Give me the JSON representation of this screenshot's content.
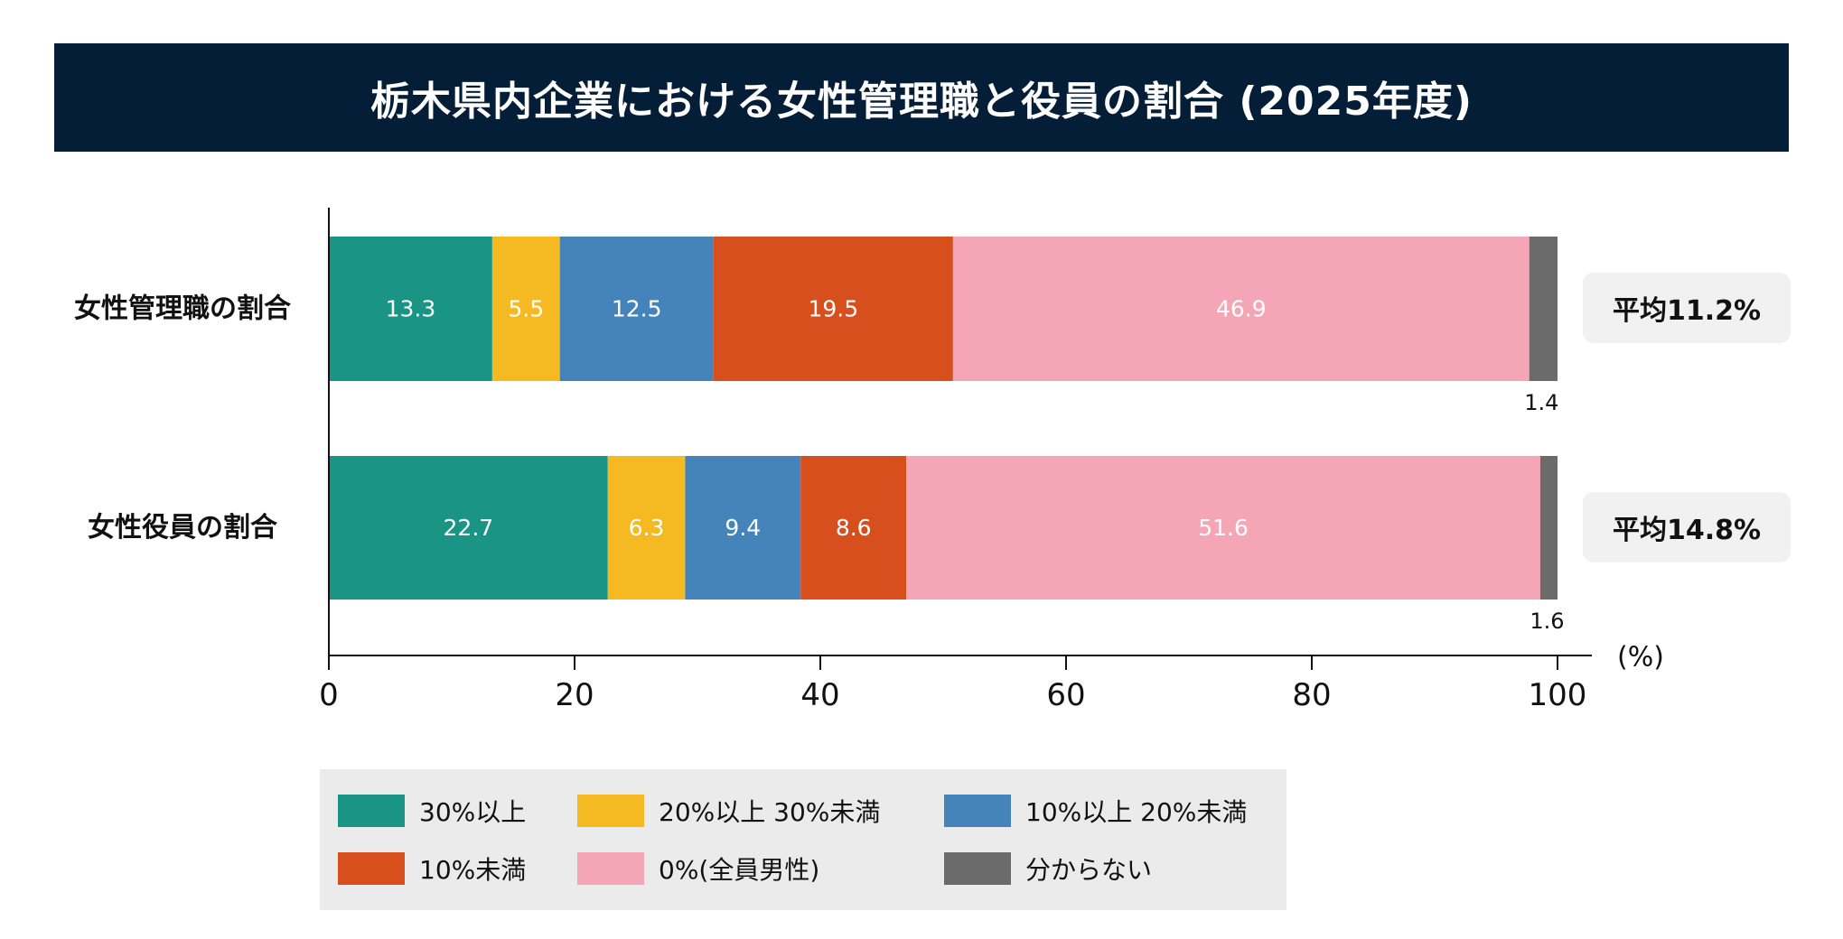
{
  "header": {
    "title": "栃木県内企業における女性管理職と役員の割合 (2025年度)"
  },
  "chart_data": {
    "type": "bar",
    "orientation": "horizontal",
    "stacked": true,
    "title": "栃木県内企業における女性管理職と役員の割合 (2025年度)",
    "categories": [
      "女性管理職の割合",
      "女性役員の割合"
    ],
    "series": [
      {
        "name": "30%以上",
        "color": "#1A9484",
        "values": [
          13.3,
          22.7
        ]
      },
      {
        "name": "20%以上 30%未満",
        "color": "#F5B921",
        "values": [
          5.5,
          6.3
        ]
      },
      {
        "name": "10%以上 20%未満",
        "color": "#4484BA",
        "values": [
          12.5,
          9.4
        ]
      },
      {
        "name": "10%未満",
        "color": "#D74F1D",
        "values": [
          19.5,
          8.6
        ]
      },
      {
        "name": "0% (全員男性)",
        "color": "#F4A6B7",
        "values": [
          46.9,
          51.6
        ]
      },
      {
        "name": "分からない",
        "color": "#6B6B6B",
        "values": [
          1.4,
          1.6
        ]
      }
    ],
    "data_labels": [
      [
        "13.3",
        "5.5",
        "12.5",
        "19.5",
        "46.9",
        "1.4"
      ],
      [
        "22.7",
        "6.3",
        "9.4",
        "8.6",
        "51.6",
        "1.6"
      ]
    ],
    "averages": [
      "平均11.2%",
      "平均14.8%"
    ],
    "xlabel": "(%)",
    "ylabel": "",
    "xlim": [
      0,
      100
    ],
    "xticks": [
      0,
      20,
      40,
      60,
      80,
      100
    ],
    "xtick_labels": [
      "0",
      "20",
      "40",
      "60",
      "80",
      "100"
    ],
    "grid": false,
    "legend_position": "bottom"
  },
  "legend": {
    "items": [
      {
        "label": "30%以上",
        "color": "#1A9484"
      },
      {
        "label": "20%以上 30%未満",
        "color": "#F5B921"
      },
      {
        "label": "10%以上 20%未満",
        "color": "#4484BA"
      },
      {
        "label": "10%未満",
        "color": "#D74F1D"
      },
      {
        "label": "0%(全員男性)",
        "color": "#F4A6B7"
      },
      {
        "label": "分からない",
        "color": "#6B6B6B"
      }
    ]
  }
}
